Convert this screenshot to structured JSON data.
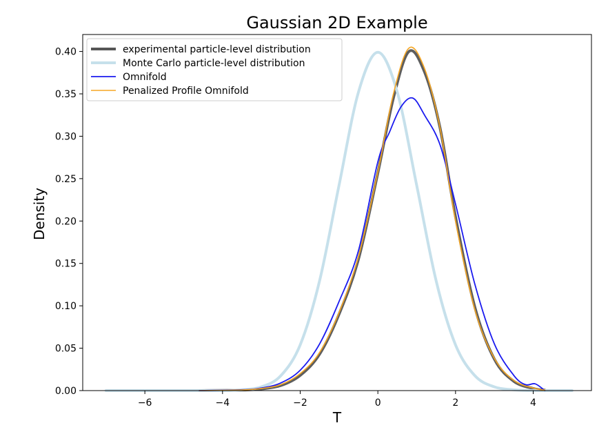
{
  "chart_data": {
    "type": "line",
    "title": "Gaussian 2D Example",
    "xlabel": "T",
    "ylabel": "Density",
    "xlim": [
      -7.6,
      5.5
    ],
    "ylim": [
      0,
      0.42
    ],
    "xticks": [
      -6,
      -4,
      -2,
      0,
      2,
      4
    ],
    "xtick_labels": [
      "−6",
      "−4",
      "−2",
      "0",
      "2",
      "4"
    ],
    "yticks": [
      0,
      0.05,
      0.1,
      0.15,
      0.2,
      0.25,
      0.3,
      0.35,
      0.4
    ],
    "ytick_labels": [
      "0.00",
      "0.05",
      "0.10",
      "0.15",
      "0.20",
      "0.25",
      "0.30",
      "0.35",
      "0.40"
    ],
    "grid": false,
    "legend_position": "upper left",
    "series": [
      {
        "name": "experimental particle-level distribution",
        "color": "#555555",
        "x": [
          -4.6,
          -3.5,
          -3.0,
          -2.5,
          -2.0,
          -1.5,
          -1.0,
          -0.5,
          0.0,
          0.4,
          0.8,
          1.2,
          1.6,
          2.0,
          2.5,
          3.0,
          3.5,
          4.0,
          4.3
        ],
        "y": [
          0.0,
          0.0006,
          0.002,
          0.006,
          0.018,
          0.043,
          0.09,
          0.155,
          0.257,
          0.345,
          0.4,
          0.376,
          0.31,
          0.205,
          0.098,
          0.037,
          0.011,
          0.0025,
          0.0005
        ]
      },
      {
        "name": "Monte Carlo particle-level distribution",
        "color": "#c6e0eb",
        "x": [
          -7.0,
          -5.0,
          -4.0,
          -3.5,
          -3.0,
          -2.5,
          -2.0,
          -1.5,
          -1.0,
          -0.5,
          0.0,
          0.5,
          1.0,
          1.5,
          2.0,
          2.5,
          3.0,
          3.5,
          4.0,
          5.0
        ],
        "y": [
          0.0,
          0.0,
          0.0001,
          0.0009,
          0.0044,
          0.0175,
          0.054,
          0.1295,
          0.242,
          0.352,
          0.399,
          0.352,
          0.242,
          0.1295,
          0.054,
          0.0175,
          0.0044,
          0.0009,
          0.0001,
          0.0
        ]
      },
      {
        "name": "Omnifold",
        "color": "#1a1aef",
        "x": [
          -4.6,
          -3.5,
          -3.0,
          -2.5,
          -2.0,
          -1.5,
          -1.0,
          -0.5,
          0.0,
          0.3,
          0.6,
          0.9,
          1.2,
          1.6,
          2.0,
          2.5,
          3.0,
          3.5,
          3.8,
          4.05,
          4.3
        ],
        "y": [
          0.0,
          0.001,
          0.003,
          0.009,
          0.024,
          0.055,
          0.105,
          0.165,
          0.27,
          0.305,
          0.335,
          0.345,
          0.325,
          0.29,
          0.22,
          0.125,
          0.055,
          0.018,
          0.007,
          0.008,
          0.0
        ]
      },
      {
        "name": "Penalized Profile Omnifold",
        "color": "#f5a623",
        "x": [
          -4.6,
          -3.5,
          -3.0,
          -2.5,
          -2.0,
          -1.5,
          -1.0,
          -0.5,
          0.0,
          0.4,
          0.8,
          1.2,
          1.6,
          2.0,
          2.5,
          3.0,
          3.5,
          4.0,
          4.3
        ],
        "y": [
          0.0,
          0.0008,
          0.0025,
          0.007,
          0.02,
          0.045,
          0.092,
          0.158,
          0.258,
          0.35,
          0.404,
          0.38,
          0.31,
          0.2,
          0.095,
          0.038,
          0.012,
          0.003,
          0.0006
        ]
      }
    ]
  }
}
